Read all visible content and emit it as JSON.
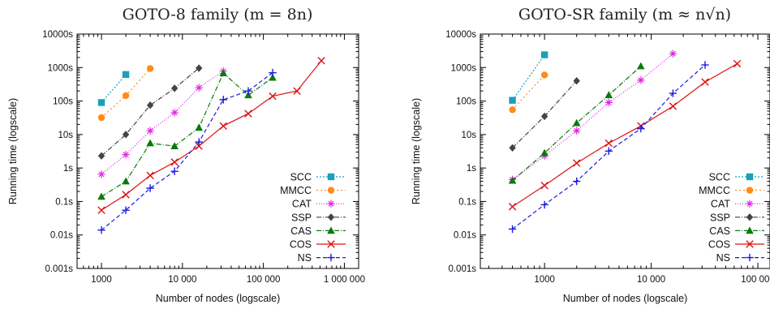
{
  "chart_data": [
    {
      "type": "line",
      "title": "GOTO-8 family (m = 8n)",
      "xlabel": "Number of nodes (logscale)",
      "ylabel": "Running time (logscale)",
      "xscale": "log",
      "yscale": "log",
      "xlim": [
        500,
        1500000
      ],
      "ylim": [
        0.001,
        10000
      ],
      "xticks": [
        {
          "value": 1000,
          "label": "1000"
        },
        {
          "value": 10000,
          "label": "10 000"
        },
        {
          "value": 100000,
          "label": "100 000"
        },
        {
          "value": 1000000,
          "label": "1 000 000"
        }
      ],
      "yticks": [
        {
          "value": 0.001,
          "label": "0.001s"
        },
        {
          "value": 0.01,
          "label": "0.01s"
        },
        {
          "value": 0.1,
          "label": "0.1s"
        },
        {
          "value": 1,
          "label": "1s"
        },
        {
          "value": 10,
          "label": "10s"
        },
        {
          "value": 100,
          "label": "100s"
        },
        {
          "value": 1000,
          "label": "1000s"
        },
        {
          "value": 10000,
          "label": "10000s"
        }
      ],
      "legend_position": "bottom-right",
      "series": [
        {
          "name": "SCC",
          "color": "#1aa0b8",
          "marker": "square",
          "dash": "2,2",
          "x": [
            1000,
            2000
          ],
          "y": [
            90,
            620
          ]
        },
        {
          "name": "MMCC",
          "color": "#ff8c1a",
          "marker": "circle",
          "dash": "2,3",
          "x": [
            1000,
            2000,
            4000
          ],
          "y": [
            32,
            145,
            930
          ]
        },
        {
          "name": "CAT",
          "color": "#e020e0",
          "marker": "star",
          "dash": "1,2",
          "x": [
            1000,
            2000,
            4000,
            8000,
            16000,
            32000
          ],
          "y": [
            0.65,
            2.5,
            13,
            45,
            250,
            780
          ]
        },
        {
          "name": "SSP",
          "color": "#444444",
          "marker": "diamond",
          "dash": "6,2,1,2",
          "x": [
            1000,
            2000,
            4000,
            8000,
            16000
          ],
          "y": [
            2.3,
            10,
            75,
            240,
            960
          ]
        },
        {
          "name": "CAS",
          "color": "#0a7a0a",
          "marker": "triangle",
          "dash": "6,2,1,2",
          "x": [
            1000,
            2000,
            4000,
            8000,
            16000,
            32000,
            65000,
            130000
          ],
          "y": [
            0.14,
            0.4,
            5.5,
            4.5,
            16,
            680,
            150,
            500
          ]
        },
        {
          "name": "COS",
          "color": "#e01010",
          "marker": "x",
          "dash": "",
          "x": [
            1000,
            2000,
            4000,
            8000,
            16000,
            32000,
            65000,
            130000,
            260000,
            520000
          ],
          "y": [
            0.055,
            0.16,
            0.6,
            1.5,
            4.5,
            18,
            42,
            140,
            200,
            1600
          ]
        },
        {
          "name": "NS",
          "color": "#1a1ae0",
          "marker": "plus",
          "dash": "5,3",
          "x": [
            1000,
            2000,
            4000,
            8000,
            16000,
            32000,
            65000,
            130000
          ],
          "y": [
            0.014,
            0.055,
            0.25,
            0.8,
            6,
            110,
            200,
            700
          ]
        }
      ]
    },
    {
      "type": "line",
      "title": "GOTO-SR family (m ≈ n√n)",
      "xlabel": "Number of nodes (logscale)",
      "ylabel": "Running time (logscale)",
      "xscale": "log",
      "yscale": "log",
      "xlim": [
        250,
        130000
      ],
      "ylim": [
        0.001,
        10000
      ],
      "xticks": [
        {
          "value": 1000,
          "label": "1000"
        },
        {
          "value": 10000,
          "label": "10 000"
        },
        {
          "value": 100000,
          "label": "100 000"
        }
      ],
      "yticks": [
        {
          "value": 0.001,
          "label": "0.001s"
        },
        {
          "value": 0.01,
          "label": "0.01s"
        },
        {
          "value": 0.1,
          "label": "0.1s"
        },
        {
          "value": 1,
          "label": "1s"
        },
        {
          "value": 10,
          "label": "10s"
        },
        {
          "value": 100,
          "label": "100s"
        },
        {
          "value": 1000,
          "label": "1000s"
        },
        {
          "value": 10000,
          "label": "10000s"
        }
      ],
      "legend_position": "bottom-right",
      "series": [
        {
          "name": "SCC",
          "color": "#1aa0b8",
          "marker": "square",
          "dash": "2,2",
          "x": [
            500,
            1000
          ],
          "y": [
            105,
            2400
          ]
        },
        {
          "name": "MMCC",
          "color": "#ff8c1a",
          "marker": "circle",
          "dash": "2,3",
          "x": [
            500,
            1000
          ],
          "y": [
            55,
            600
          ]
        },
        {
          "name": "CAT",
          "color": "#e020e0",
          "marker": "star",
          "dash": "1,2",
          "x": [
            500,
            1000,
            2000,
            4000,
            8000,
            16000
          ],
          "y": [
            0.45,
            2.3,
            13,
            90,
            420,
            2600
          ]
        },
        {
          "name": "SSP",
          "color": "#444444",
          "marker": "diamond",
          "dash": "6,2,1,2",
          "x": [
            500,
            1000,
            2000
          ],
          "y": [
            4,
            35,
            400
          ]
        },
        {
          "name": "CAS",
          "color": "#0a7a0a",
          "marker": "triangle",
          "dash": "6,2,1,2",
          "x": [
            500,
            1000,
            2000,
            4000,
            8000
          ],
          "y": [
            0.42,
            2.8,
            22,
            150,
            1100
          ]
        },
        {
          "name": "COS",
          "color": "#e01010",
          "marker": "x",
          "dash": "",
          "x": [
            500,
            1000,
            2000,
            4000,
            8000,
            16000,
            32000,
            64000
          ],
          "y": [
            0.07,
            0.3,
            1.4,
            5.5,
            18,
            70,
            370,
            1300
          ]
        },
        {
          "name": "NS",
          "color": "#1a1ae0",
          "marker": "plus",
          "dash": "5,3",
          "x": [
            500,
            1000,
            2000,
            4000,
            8000,
            16000,
            32000
          ],
          "y": [
            0.015,
            0.08,
            0.4,
            3.2,
            15,
            170,
            1200
          ]
        }
      ]
    }
  ]
}
